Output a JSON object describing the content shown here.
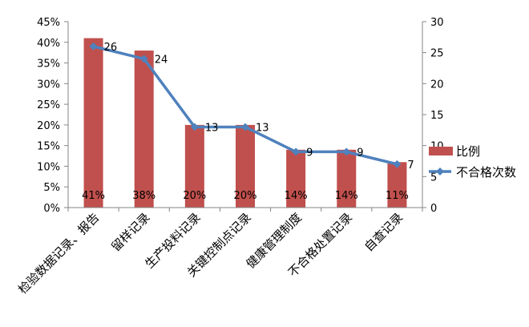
{
  "chart_data": {
    "type": "bar",
    "categories": [
      "检验数据记录、报告",
      "留样记录",
      "生产投料记录",
      "关键控制点记录",
      "健康管理制度",
      "不合格处置记录",
      "自查记录"
    ],
    "series": [
      {
        "name": "比例",
        "type": "bar",
        "axis": "left",
        "values": [
          41,
          38,
          20,
          20,
          14,
          14,
          11
        ],
        "labels": [
          "41%",
          "38%",
          "20%",
          "20%",
          "14%",
          "14%",
          "11%"
        ],
        "color": "#C0504D"
      },
      {
        "name": "不合格次数",
        "type": "line",
        "axis": "right",
        "values": [
          26,
          24,
          13,
          13,
          9,
          9,
          7
        ],
        "labels": [
          "26",
          "24",
          "13",
          "13",
          "9",
          "9",
          "7"
        ],
        "color": "#4F81BD"
      }
    ],
    "y_left": {
      "min": 0,
      "max": 45,
      "step": 5,
      "ticks": [
        "0%",
        "5%",
        "10%",
        "15%",
        "20%",
        "25%",
        "30%",
        "35%",
        "40%",
        "45%"
      ]
    },
    "y_right": {
      "min": 0,
      "max": 30,
      "step": 5,
      "ticks": [
        "0",
        "5",
        "10",
        "15",
        "20",
        "25",
        "30"
      ]
    },
    "grid": false,
    "legend": "right"
  }
}
